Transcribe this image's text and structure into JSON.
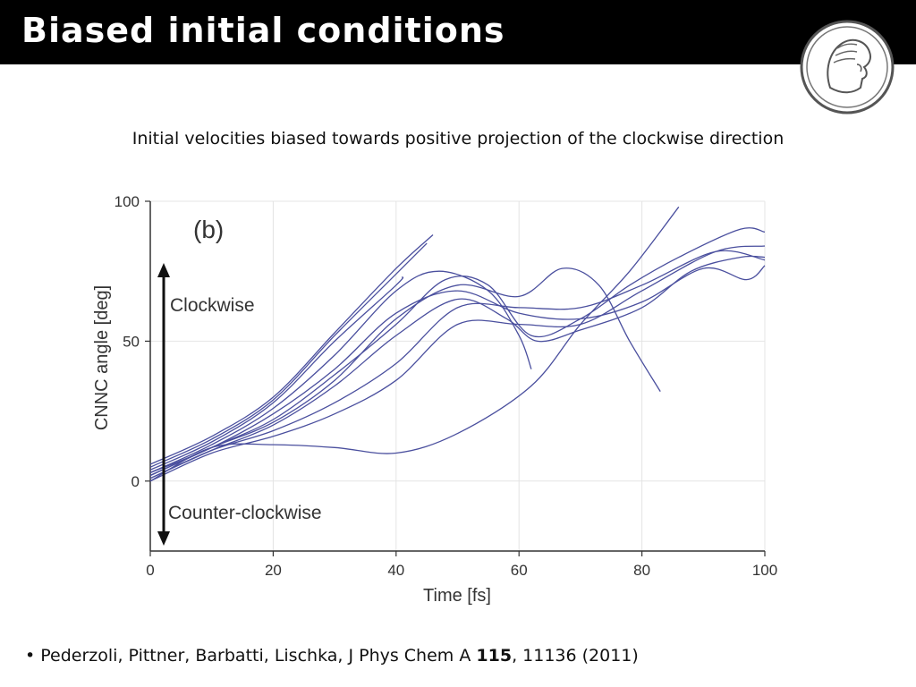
{
  "slide": {
    "title": "Biased initial conditions",
    "subtitle": "Initial velocities biased towards positive projection of the clockwise direction"
  },
  "logo": {
    "icon": "minerva-logo-icon"
  },
  "reference": {
    "bullet": "•",
    "authors": "Pederzoli, Pittner, Barbatti, Lischka, J Phys Chem A",
    "volume": "115",
    "pages": ", 11136 (2011)"
  },
  "chart_data": {
    "type": "line",
    "panel_label": "(b)",
    "xlabel": "Time [fs]",
    "ylabel": "CNNC angle [deg]",
    "xlim": [
      0,
      100
    ],
    "ylim": [
      -25,
      100
    ],
    "x_ticks": [
      "0",
      "20",
      "40",
      "60",
      "80",
      "100"
    ],
    "y_ticks": [
      "0",
      "50",
      "100"
    ],
    "grid": true,
    "line_color": "#4a4f9e",
    "annotations": {
      "up_label": "Clockwise",
      "down_label": "Counter-clockwise"
    },
    "series": [
      {
        "points": [
          [
            0,
            4
          ],
          [
            10,
            14
          ],
          [
            20,
            28
          ],
          [
            30,
            50
          ],
          [
            40,
            70
          ],
          [
            41,
            73
          ]
        ]
      },
      {
        "points": [
          [
            0,
            5
          ],
          [
            10,
            15
          ],
          [
            20,
            29
          ],
          [
            30,
            52
          ],
          [
            40,
            74
          ],
          [
            45,
            85
          ]
        ]
      },
      {
        "points": [
          [
            0,
            6
          ],
          [
            10,
            16
          ],
          [
            20,
            30
          ],
          [
            30,
            53
          ],
          [
            40,
            76
          ],
          [
            46,
            88
          ]
        ]
      },
      {
        "points": [
          [
            0,
            3
          ],
          [
            10,
            13
          ],
          [
            20,
            26
          ],
          [
            30,
            45
          ],
          [
            40,
            68
          ],
          [
            47,
            75
          ],
          [
            55,
            68
          ],
          [
            60,
            52
          ],
          [
            62,
            40
          ]
        ]
      },
      {
        "points": [
          [
            0,
            2
          ],
          [
            10,
            12
          ],
          [
            20,
            22
          ],
          [
            30,
            38
          ],
          [
            40,
            56
          ],
          [
            48,
            72
          ],
          [
            55,
            70
          ],
          [
            62,
            52
          ],
          [
            70,
            58
          ],
          [
            78,
            70
          ],
          [
            86,
            80
          ],
          [
            96,
            90
          ],
          [
            100,
            89
          ]
        ]
      },
      {
        "points": [
          [
            0,
            1
          ],
          [
            10,
            11
          ],
          [
            20,
            20
          ],
          [
            30,
            34
          ],
          [
            40,
            52
          ],
          [
            50,
            65
          ],
          [
            58,
            58
          ],
          [
            63,
            50
          ],
          [
            70,
            54
          ],
          [
            80,
            62
          ],
          [
            88,
            75
          ],
          [
            96,
            80
          ],
          [
            100,
            80
          ]
        ]
      },
      {
        "points": [
          [
            0,
            2
          ],
          [
            10,
            12
          ],
          [
            20,
            21
          ],
          [
            30,
            36
          ],
          [
            40,
            58
          ],
          [
            50,
            70
          ],
          [
            60,
            66
          ],
          [
            67,
            76
          ],
          [
            73,
            70
          ],
          [
            78,
            50
          ],
          [
            83,
            32
          ]
        ]
      },
      {
        "points": [
          [
            0,
            3
          ],
          [
            10,
            12
          ],
          [
            20,
            24
          ],
          [
            30,
            40
          ],
          [
            40,
            60
          ],
          [
            50,
            68
          ],
          [
            60,
            60
          ],
          [
            70,
            58
          ],
          [
            80,
            64
          ],
          [
            90,
            76
          ],
          [
            97,
            72
          ],
          [
            100,
            77
          ]
        ]
      },
      {
        "points": [
          [
            0,
            1
          ],
          [
            10,
            11
          ],
          [
            20,
            18
          ],
          [
            30,
            28
          ],
          [
            40,
            42
          ],
          [
            50,
            62
          ],
          [
            60,
            62
          ],
          [
            70,
            62
          ],
          [
            80,
            70
          ],
          [
            92,
            82
          ],
          [
            100,
            79
          ]
        ]
      },
      {
        "points": [
          [
            0,
            0
          ],
          [
            10,
            10
          ],
          [
            20,
            16
          ],
          [
            30,
            24
          ],
          [
            40,
            36
          ],
          [
            50,
            56
          ],
          [
            60,
            56
          ],
          [
            70,
            56
          ],
          [
            80,
            68
          ],
          [
            92,
            82
          ],
          [
            100,
            84
          ]
        ]
      },
      {
        "points": [
          [
            0,
            0
          ],
          [
            10,
            12
          ],
          [
            20,
            13
          ],
          [
            30,
            12
          ],
          [
            40,
            10
          ],
          [
            50,
            17
          ],
          [
            62,
            34
          ],
          [
            70,
            56
          ],
          [
            78,
            75
          ],
          [
            86,
            98
          ]
        ]
      }
    ]
  }
}
